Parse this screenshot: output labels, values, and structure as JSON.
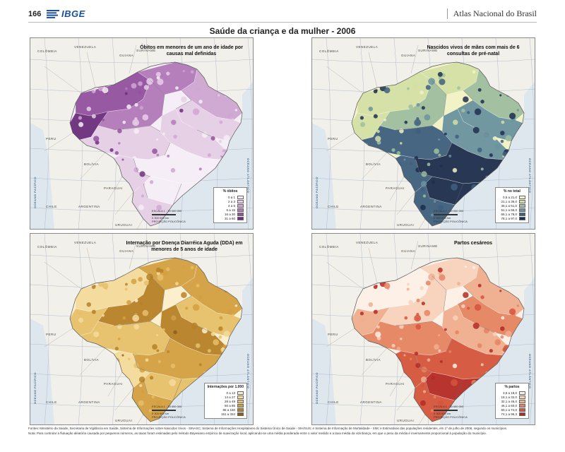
{
  "header": {
    "page_number": "166",
    "logo_text": "IBGE",
    "atlas_title": "Atlas Nacional do Brasil"
  },
  "main_title": "Saúde da criança e da mulher - 2006",
  "maps": [
    {
      "title": "Óbitos em menores de um ano de idade por causas mal definidas",
      "legend_title": "% óbitos",
      "legend": [
        {
          "label": "0 a 1",
          "color": "#f5eef6"
        },
        {
          "label": "2 a 3",
          "color": "#e6cfe6"
        },
        {
          "label": "4 a 6",
          "color": "#cfa7d2"
        },
        {
          "label": "6 a 15",
          "color": "#b27ab9"
        },
        {
          "label": "16 a 30",
          "color": "#93529e"
        },
        {
          "label": "31 a 60",
          "color": "#6d2f7c"
        }
      ],
      "scale_text": "ESCALA 1 : 30 000 000",
      "scale_ticks": "0     300    600 km",
      "projection": "PROJEÇÃO POLICÔNICA"
    },
    {
      "title": "Nascidos vivos de mães com mais de 6 consultas de pré-natal",
      "legend_title": "% no total",
      "legend": [
        {
          "label": "0,5 a 21,0",
          "color": "#f1f2c6"
        },
        {
          "label": "21,1 a 36,0",
          "color": "#d4e1a6"
        },
        {
          "label": "36,1 a 51,0",
          "color": "#9fbfa0"
        },
        {
          "label": "51,1 a 65,0",
          "color": "#6b93a0"
        },
        {
          "label": "65,1 a 78,0",
          "color": "#3e5f7f"
        },
        {
          "label": "78,1 a 97,0",
          "color": "#1e2e4e"
        }
      ],
      "scale_text": "ESCALA 1 : 30 000 000",
      "scale_ticks": "0     300    600 km",
      "projection": "PROJEÇÃO POLICÔNICA"
    },
    {
      "title": "Internação por Doença Diarréica Aguda (DDA) em menores de 5 anos de idade",
      "legend_title": "Internações por 1.000",
      "legend": [
        {
          "label": "0 a 13",
          "color": "#fbefcd"
        },
        {
          "label": "14 a 27",
          "color": "#f4dc9c"
        },
        {
          "label": "28 a 49",
          "color": "#e6c06a"
        },
        {
          "label": "50 a 85",
          "color": "#d3a041"
        },
        {
          "label": "86 a 150",
          "color": "#b78127"
        },
        {
          "label": "151 a 334",
          "color": "#8e5f17"
        }
      ],
      "scale_text": "ESCALA 1 : 30 000 000",
      "scale_ticks": "0     300    600 km",
      "projection": "PROJEÇÃO POLICÔNICA"
    },
    {
      "title": "Partos cesáreos",
      "legend_title": "% partos",
      "legend": [
        {
          "label": "3,6 a 18,0",
          "color": "#fdf0e6"
        },
        {
          "label": "18,1 a 32,0",
          "color": "#f8d2bb"
        },
        {
          "label": "32,1 a 46,0",
          "color": "#f0ae8e"
        },
        {
          "label": "46,1 a 60,0",
          "color": "#e58461"
        },
        {
          "label": "60,1 a 74,0",
          "color": "#d5553c"
        },
        {
          "label": "74,1 a 96,3",
          "color": "#b42a26"
        }
      ],
      "scale_text": "ESCALA 1 : 30 000 000",
      "scale_ticks": "0     300    600 km",
      "projection": "PROJEÇÃO POLICÔNICA"
    }
  ],
  "geo_labels": {
    "colombia": "COLÔMBIA",
    "venezuela": "VENEZUELA",
    "guiana": "GUIANA",
    "suriname": "SURINAME",
    "peru": "PERU",
    "bolivia": "BOLÍVIA",
    "paraguai": "PARAGUAI",
    "argentina": "ARGENTINA",
    "uruguai": "URUGUAI",
    "chile": "CHILE",
    "pacifico": "OCEANO PACÍFICO",
    "atlantico": "OCEANO ATLÂNTICO"
  },
  "footnote": {
    "sources": "Fontes: Ministério da Saúde, Secretaria de Vigilância em Saúde, Sistema de Informações sobre Nascidos Vivos - SINASC; Sistema de Informações Hospitalares do Sistema Único de Saúde - SIH/SUS; e Sistema de Informação de Mortalidade - SIM; e Estimativas das populações residentes, em 1º de julho de 2006, segundo os municípios.",
    "note": "Nota: Para controlar a flutuação aleatória causada por pequenos números, as taxas foram estimadas pelo método Bayesiano empírico de suavização local, aplicando-se uma média ponderada entre o valor medido e a taxa média da vizinhança, em que o peso da média é inversamente proporcional à população do município."
  }
}
